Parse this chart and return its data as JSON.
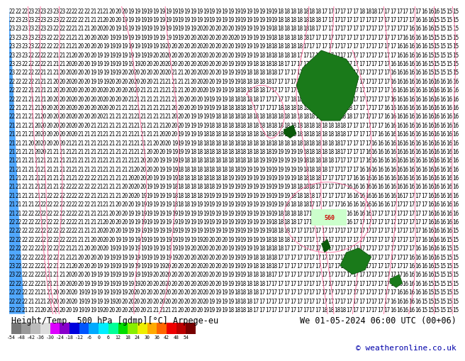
{
  "title_left": "Height/Temp. 500 hPa [gdmp][°C] Arpege-eu",
  "title_right": "We 01-05-2024 06:00 UTC (00+06)",
  "copyright": "© weatheronline.co.uk",
  "colorbar_values": [
    -54,
    -48,
    -42,
    -36,
    -30,
    -24,
    -18,
    -12,
    -6,
    0,
    6,
    12,
    18,
    24,
    30,
    36,
    42,
    48,
    54
  ],
  "colorbar_colors": [
    "#777777",
    "#999999",
    "#bbbbbb",
    "#dddddd",
    "#dd00ff",
    "#8800cc",
    "#0000dd",
    "#0055ff",
    "#00aaff",
    "#00eeff",
    "#00ff99",
    "#00dd00",
    "#88ee00",
    "#eeee00",
    "#ffaa00",
    "#ff6600",
    "#ee0000",
    "#bb0000",
    "#770000"
  ],
  "map_bg": "#00bbff",
  "text_color": "#000000",
  "number_color": "#000000",
  "contour_color": "#ff6699",
  "green1_color": "#1a7a1a",
  "green2_color": "#1a7a1a",
  "green3_color": "#1a7a1a",
  "blue_left_color": "#3399ff",
  "label_560_bg": "#ccffcc",
  "fig_width": 6.34,
  "fig_height": 4.9,
  "map_rows": 35,
  "map_cols": 72,
  "fontsize_numbers": 5.5,
  "fontsize_title": 8.5,
  "fontsize_copyright": 8.0,
  "fontsize_560": 6.0,
  "fontsize_cb_tick": 4.8
}
